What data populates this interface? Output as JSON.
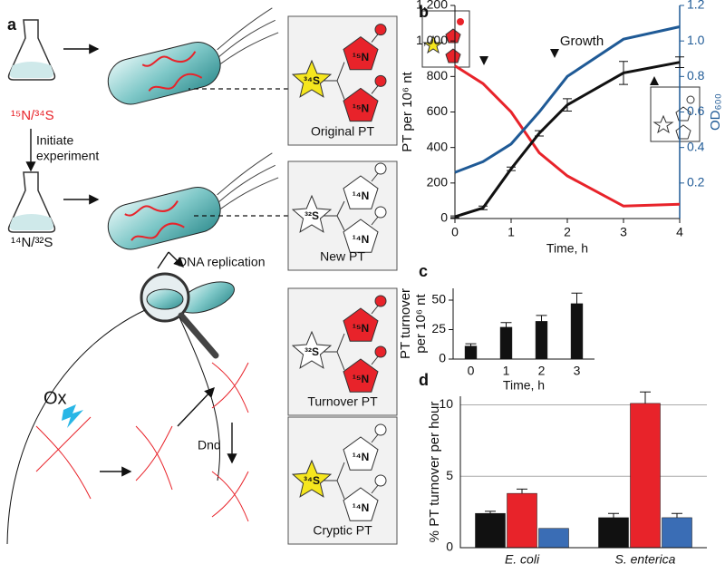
{
  "panel_a": {
    "label": "a",
    "start_isotopes": "¹⁵N/³⁴S",
    "step": [
      "Initiate",
      "experiment"
    ],
    "new_isotopes": "¹⁴N/³²S",
    "replication": "DNA replication",
    "oxidant": "Ox",
    "enzyme": "Dnd",
    "molecules": [
      {
        "name": "Original PT",
        "s": "³⁴S",
        "n1": "¹⁵N",
        "n2": "¹⁵N"
      },
      {
        "name": "New PT",
        "s": "³²S",
        "n1": "¹⁴N",
        "n2": "¹⁴N"
      },
      {
        "name": "Turnover PT",
        "s": "³²S",
        "n1": "¹⁵N",
        "n2": "¹⁵N"
      },
      {
        "name": "Cryptic PT",
        "s": "³⁴S",
        "n1": "¹⁴N",
        "n2": "¹⁴N"
      }
    ]
  },
  "chart_data": [
    {
      "type": "line",
      "label": "b",
      "x": [
        0,
        0.5,
        1,
        1.5,
        2,
        3,
        4
      ],
      "xlim": [
        0,
        4
      ],
      "xticks": [
        0,
        1,
        2,
        3,
        4
      ],
      "ylim": [
        0,
        1200
      ],
      "yticks": [
        0,
        200,
        400,
        600,
        800,
        {
          "value": 1000,
          "label": "1,000"
        },
        {
          "value": 1200,
          "label": "1,200"
        }
      ],
      "y2lim": [
        0,
        1.2
      ],
      "y2ticks": [
        0.2,
        0.4,
        0.6,
        0.8,
        {
          "value": 1,
          "label": "1.0"
        },
        1.2
      ],
      "xlabel": "Time, h",
      "ylabel": "PT per 10⁶ nt",
      "y2label": "OD₆₀₀",
      "annotation": "Growth",
      "series": [
        {
          "color": "#e8232a",
          "values": [
            860,
            760,
            600,
            370,
            240,
            70,
            80
          ]
        },
        {
          "color": "#111111",
          "values": [
            10,
            60,
            280,
            480,
            640,
            820,
            880
          ],
          "errors": [
            5,
            10,
            10,
            15,
            35,
            65,
            30
          ]
        },
        {
          "color": "#1f5a96",
          "axis": "y2",
          "values": [
            0.26,
            0.32,
            0.42,
            0.6,
            0.8,
            1.01,
            1.08
          ]
        }
      ]
    },
    {
      "type": "bar",
      "label": "c",
      "categories": [
        "0",
        "1",
        "2",
        "3"
      ],
      "values": [
        11,
        27,
        32,
        47
      ],
      "errors": [
        2,
        4,
        5,
        9
      ],
      "color": "#111111",
      "ylim": [
        0,
        60
      ],
      "yticks": [
        0,
        25,
        50
      ],
      "xlabel": "Time, h",
      "ylabel": [
        "PT turnover",
        "per 10⁶ nt"
      ]
    },
    {
      "type": "bar",
      "label": "d",
      "categories": [
        "E. coli",
        "S. enterica"
      ],
      "series": [
        {
          "color": "#111111",
          "values": [
            2.4,
            2.1
          ],
          "errors": [
            0.15,
            0.3
          ]
        },
        {
          "color": "#e8232a",
          "values": [
            3.8,
            10.1
          ],
          "errors": [
            0.3,
            0.8
          ]
        },
        {
          "color": "#3a6db5",
          "values": [
            1.35,
            2.1
          ],
          "errors": [
            null,
            0.3
          ]
        }
      ],
      "ylim": [
        0,
        10.6
      ],
      "yticks": [
        0,
        5,
        10
      ],
      "grid": true,
      "ylabel": "% PT turnover per hour"
    }
  ]
}
